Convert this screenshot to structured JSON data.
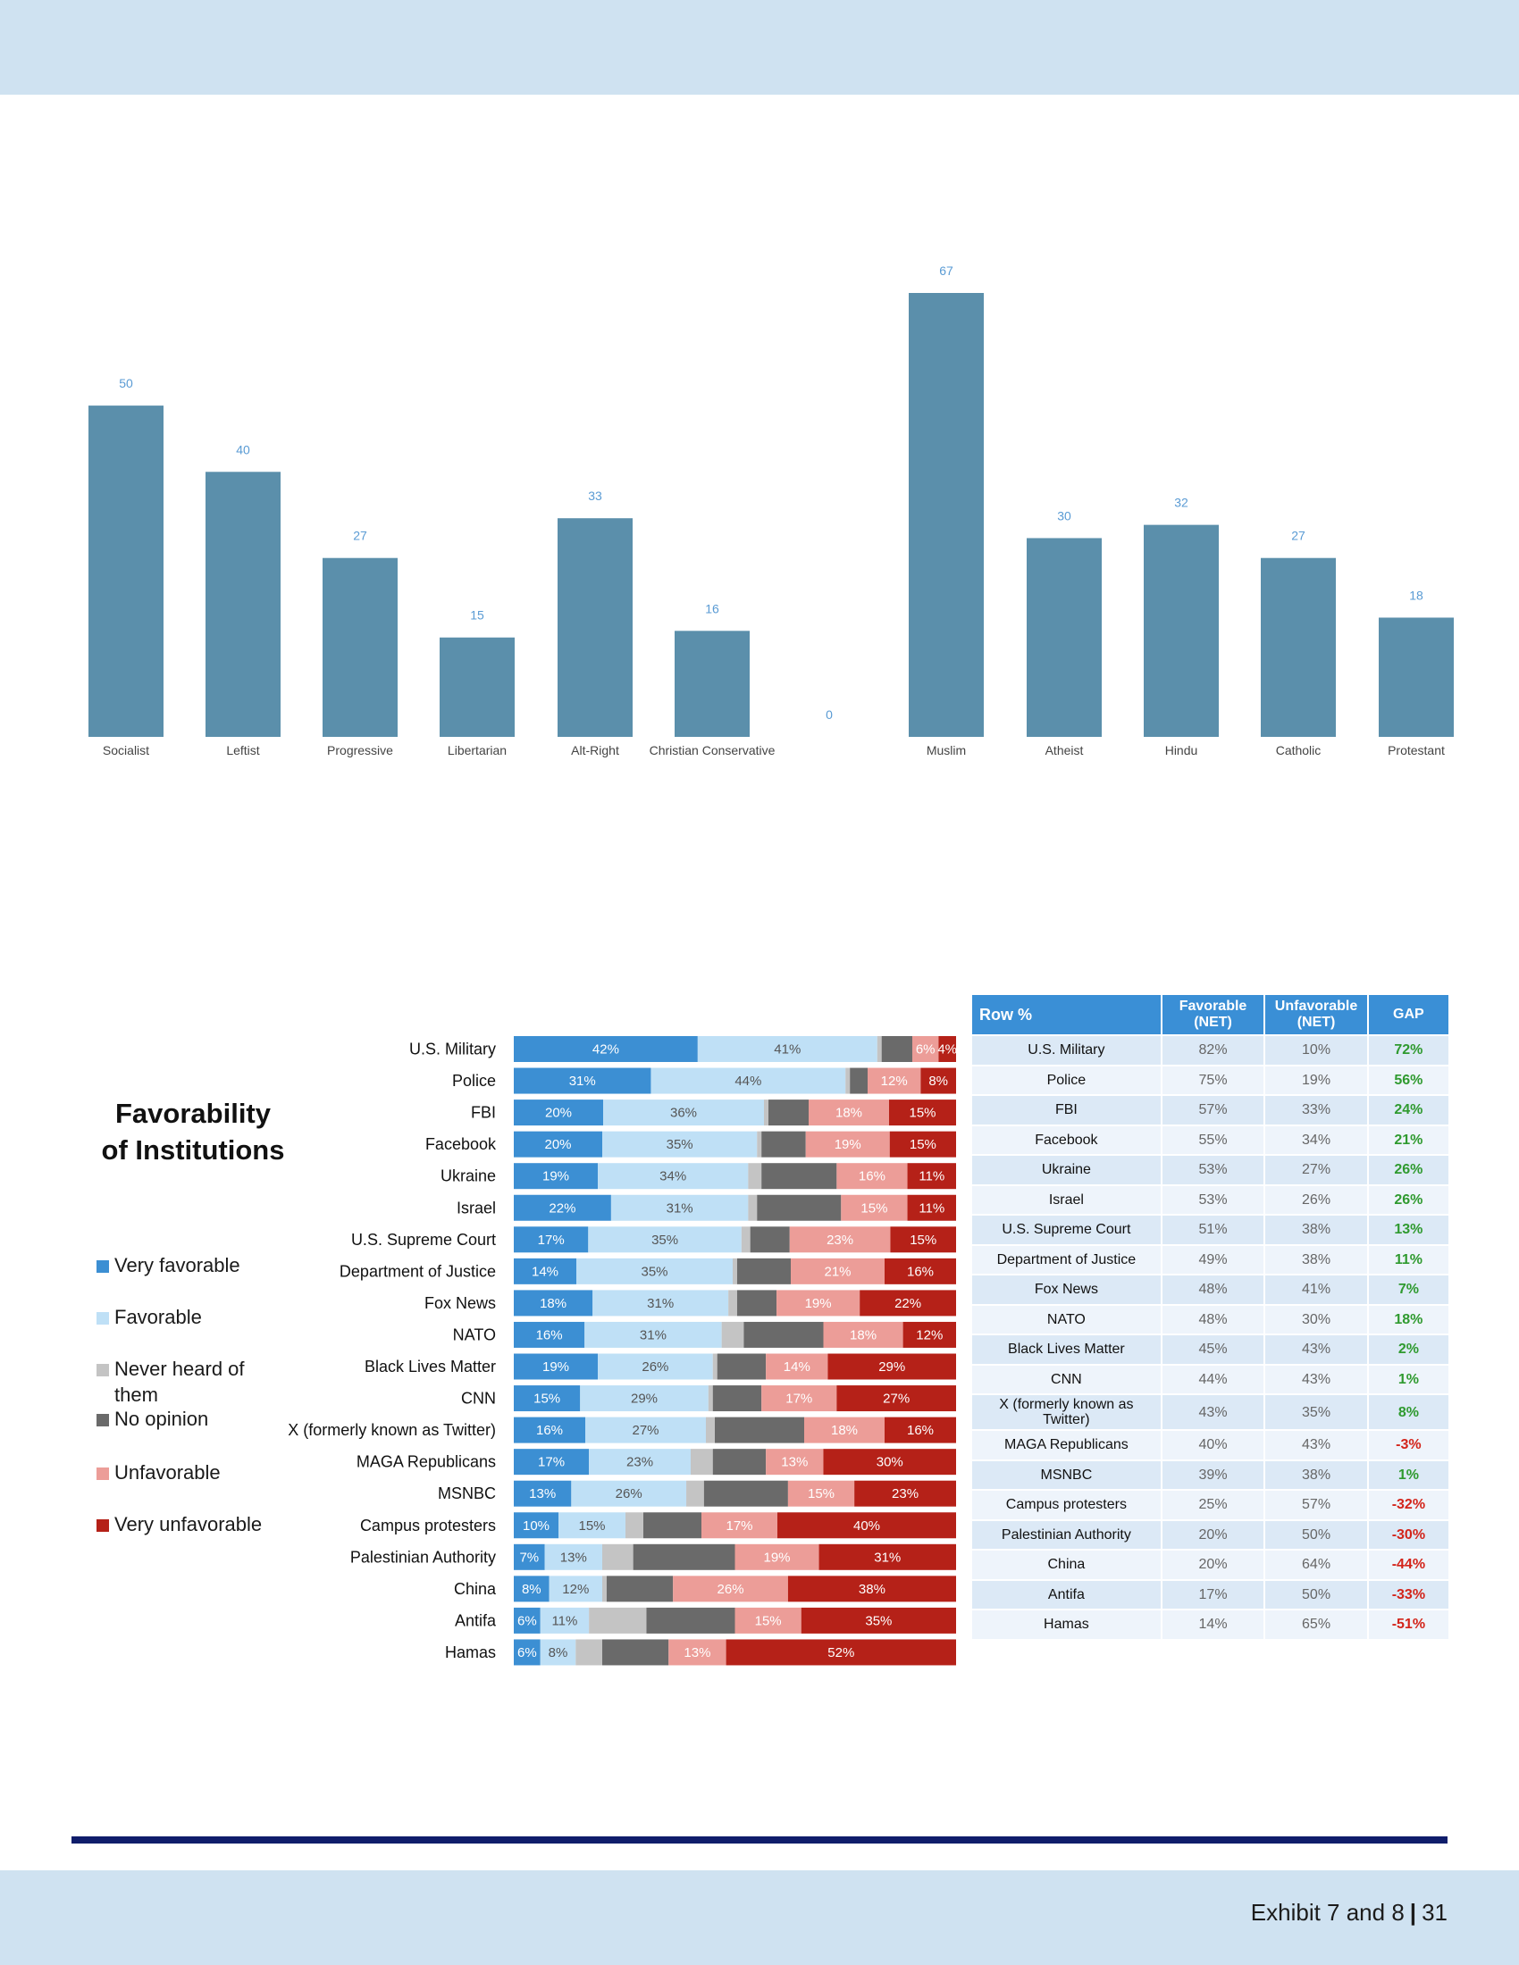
{
  "footer": {
    "label": "Exhibit 7 and 8",
    "separator": "|",
    "page": "31"
  },
  "colors": {
    "band": "#cfe2f1",
    "rule": "#0f1d6b",
    "top_bar": "#5b8fab",
    "top_label": "#5a9bd4",
    "very_favorable": "#3c8fd3",
    "favorable": "#bfe0f6",
    "never_heard": "#c4c4c4",
    "no_opinion": "#6a6a6a",
    "unfavorable": "#ec9d98",
    "very_unfavorable": "#b52118",
    "gap_positive": "#2f9a2f",
    "gap_negative": "#d3241a"
  },
  "chart_data": [
    {
      "type": "bar",
      "categories": [
        "Socialist",
        "Leftist",
        "Progressive",
        "Libertarian",
        "Alt-Right",
        "Christian Conservative",
        "",
        "Muslim",
        "Atheist",
        "Hindu",
        "Catholic",
        "Protestant"
      ],
      "values": [
        50,
        40,
        27,
        15,
        33,
        16,
        0,
        67,
        30,
        32,
        27,
        18
      ],
      "title": "",
      "xlabel": "",
      "ylabel": "",
      "ylim": [
        0,
        67
      ],
      "grid": false,
      "legend": "none"
    },
    {
      "type": "bar",
      "orientation": "horizontal-stacked",
      "title": "Favorability of Institutions",
      "legend": "left",
      "series_labels": [
        "Very favorable",
        "Favorable",
        "Never heard of them",
        "No opinion",
        "Unfavorable",
        "Very unfavorable"
      ],
      "categories": [
        "U.S. Military",
        "Police",
        "FBI",
        "Facebook",
        "Ukraine",
        "Israel",
        "U.S. Supreme Court",
        "Department of Justice",
        "Fox News",
        "NATO",
        "Black Lives Matter",
        "CNN",
        "X (formerly known as Twitter)",
        "MAGA Republicans",
        "MSNBC",
        "Campus protesters",
        "Palestinian Authority",
        "China",
        "Antifa",
        "Hamas"
      ],
      "segments": [
        [
          42,
          41,
          1,
          7,
          6,
          4
        ],
        [
          31,
          44,
          1,
          4,
          12,
          8
        ],
        [
          20,
          36,
          1,
          9,
          18,
          15
        ],
        [
          20,
          35,
          1,
          10,
          19,
          15
        ],
        [
          19,
          34,
          3,
          17,
          16,
          11
        ],
        [
          22,
          31,
          2,
          19,
          15,
          11
        ],
        [
          17,
          35,
          2,
          9,
          23,
          15
        ],
        [
          14,
          35,
          1,
          12,
          21,
          16
        ],
        [
          18,
          31,
          2,
          9,
          19,
          22
        ],
        [
          16,
          31,
          5,
          18,
          18,
          12
        ],
        [
          19,
          26,
          1,
          11,
          14,
          29
        ],
        [
          15,
          29,
          1,
          11,
          17,
          27
        ],
        [
          16,
          27,
          2,
          20,
          18,
          16
        ],
        [
          17,
          23,
          5,
          12,
          13,
          30
        ],
        [
          13,
          26,
          4,
          19,
          15,
          23
        ],
        [
          10,
          15,
          4,
          13,
          17,
          40
        ],
        [
          7,
          13,
          7,
          23,
          19,
          31
        ],
        [
          8,
          12,
          1,
          15,
          26,
          38
        ],
        [
          6,
          11,
          13,
          20,
          15,
          35
        ],
        [
          6,
          8,
          6,
          15,
          13,
          52
        ]
      ],
      "labels": [
        [
          "42%",
          "41%",
          "",
          "",
          "6%",
          "4%"
        ],
        [
          "31%",
          "44%",
          "",
          "",
          "12%",
          "8%"
        ],
        [
          "20%",
          "36%",
          "",
          "",
          "18%",
          "15%"
        ],
        [
          "20%",
          "35%",
          "",
          "",
          "19%",
          "15%"
        ],
        [
          "19%",
          "34%",
          "",
          "",
          "16%",
          "11%"
        ],
        [
          "22%",
          "31%",
          "",
          "",
          "15%",
          "11%"
        ],
        [
          "17%",
          "35%",
          "",
          "",
          "23%",
          "15%"
        ],
        [
          "14%",
          "35%",
          "",
          "",
          "21%",
          "16%"
        ],
        [
          "18%",
          "31%",
          "",
          "",
          "19%",
          "22%"
        ],
        [
          "16%",
          "31%",
          "",
          "",
          "18%",
          "12%"
        ],
        [
          "19%",
          "26%",
          "",
          "",
          "14%",
          "29%"
        ],
        [
          "15%",
          "29%",
          "",
          "",
          "17%",
          "27%"
        ],
        [
          "16%",
          "27%",
          "",
          "",
          "18%",
          "16%"
        ],
        [
          "17%",
          "23%",
          "",
          "",
          "13%",
          "30%"
        ],
        [
          "13%",
          "26%",
          "",
          "",
          "15%",
          "23%"
        ],
        [
          "10%",
          "15%",
          "",
          "",
          "17%",
          "40%"
        ],
        [
          "7%",
          "13%",
          "",
          "",
          "19%",
          "31%"
        ],
        [
          "8%",
          "12%",
          "",
          "",
          "26%",
          "38%"
        ],
        [
          "6%",
          "11%",
          "",
          "",
          "15%",
          "35%"
        ],
        [
          "6%",
          "8%",
          "",
          "",
          "13%",
          "52%"
        ]
      ]
    }
  ],
  "fav_title": {
    "line1": "Favorability",
    "line2": "of Institutions"
  },
  "legend": [
    {
      "key": "very_favorable",
      "label": "Very favorable"
    },
    {
      "key": "favorable",
      "label": "Favorable"
    },
    {
      "key": "never_heard",
      "label": "Never heard of them"
    },
    {
      "key": "no_opinion",
      "label": "No opinion"
    },
    {
      "key": "unfavorable",
      "label": "Unfavorable"
    },
    {
      "key": "very_unfavorable",
      "label": "Very unfavorable"
    }
  ],
  "table": {
    "headers": [
      "Row %",
      "Favorable (NET)",
      "Unfavorable (NET)",
      "GAP"
    ],
    "rows": [
      [
        "U.S. Military",
        "82%",
        "10%",
        "72%"
      ],
      [
        "Police",
        "75%",
        "19%",
        "56%"
      ],
      [
        "FBI",
        "57%",
        "33%",
        "24%"
      ],
      [
        "Facebook",
        "55%",
        "34%",
        "21%"
      ],
      [
        "Ukraine",
        "53%",
        "27%",
        "26%"
      ],
      [
        "Israel",
        "53%",
        "26%",
        "26%"
      ],
      [
        "U.S. Supreme Court",
        "51%",
        "38%",
        "13%"
      ],
      [
        "Department of Justice",
        "49%",
        "38%",
        "11%"
      ],
      [
        "Fox News",
        "48%",
        "41%",
        "7%"
      ],
      [
        "NATO",
        "48%",
        "30%",
        "18%"
      ],
      [
        "Black Lives Matter",
        "45%",
        "43%",
        "2%"
      ],
      [
        "CNN",
        "44%",
        "43%",
        "1%"
      ],
      [
        "X (formerly known as Twitter)",
        "43%",
        "35%",
        "8%"
      ],
      [
        "MAGA Republicans",
        "40%",
        "43%",
        "-3%"
      ],
      [
        "MSNBC",
        "39%",
        "38%",
        "1%"
      ],
      [
        "Campus protesters",
        "25%",
        "57%",
        "-32%"
      ],
      [
        "Palestinian Authority",
        "20%",
        "50%",
        "-30%"
      ],
      [
        "China",
        "20%",
        "64%",
        "-44%"
      ],
      [
        "Antifa",
        "17%",
        "50%",
        "-33%"
      ],
      [
        "Hamas",
        "14%",
        "65%",
        "-51%"
      ]
    ]
  }
}
